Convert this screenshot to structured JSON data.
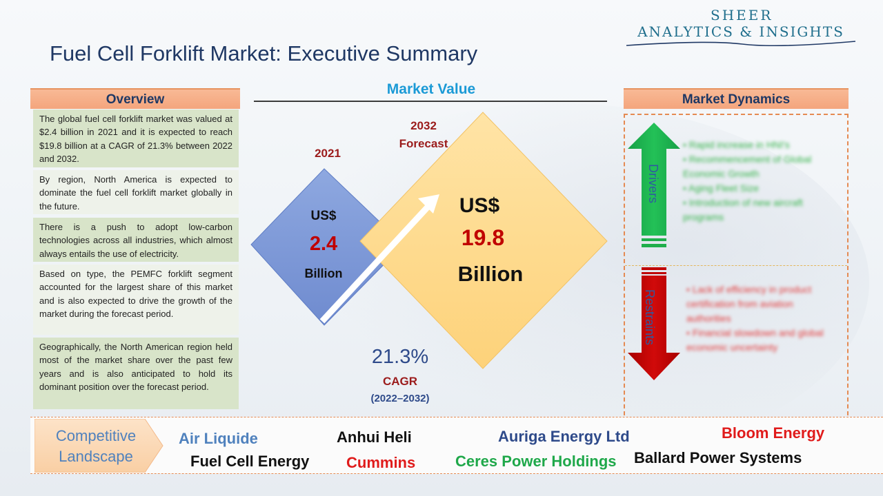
{
  "logo": {
    "line1": "SHEER",
    "line2": "ANALYTICS & INSIGHTS"
  },
  "title": "Fuel Cell Forklift Market: Executive Summary",
  "overview": {
    "heading": "Overview",
    "paragraphs": [
      "The global fuel cell forklift market was valued at $2.4 billion in 2021 and it is expected to reach $19.8 billion at a CAGR of 21.3% between 2022 and 2032.",
      "By region, North America is expected to dominate the fuel cell forklift market globally in the future.",
      "There is a push to adopt low-carbon technologies across all industries, which almost always entails the use of electricity.",
      "Based on type, the PEMFC forklift segment accounted for the largest share of this market and is also expected to drive the growth of the market during the forecast period.",
      "Geographically, the North American region held most of the market share over the past few years and is also anticipated to hold its dominant position over the forecast period."
    ]
  },
  "market_value": {
    "heading": "Market Value",
    "year_2021": "2021",
    "year_2032": "2032 Forecast",
    "currency_small": "US$",
    "value_2021": "2.4",
    "unit_small": "Billion",
    "currency_large": "US$",
    "value_2032": "19.8",
    "unit_large": "Billion",
    "cagr_value": "21.3%",
    "cagr_label": "CAGR",
    "cagr_period": "(2022–2032)"
  },
  "market_dynamics": {
    "heading": "Market Dynamics",
    "drivers_label": "Drivers",
    "restraints_label": "Restraints",
    "drivers": [
      "Rapid increase in HNI's",
      "Recommencement of Global Economic Growth",
      "Aging Fleet Size",
      "Introduction of new aircraft programs"
    ],
    "restraints": [
      "Lack of efficiency in product certification from aviation authorities",
      "Financial slowdown and global economic uncertainty"
    ]
  },
  "competitive_landscape": {
    "heading": "Competitive Landscape",
    "companies": [
      {
        "name": "Air Liquide",
        "color": "#4f81bd"
      },
      {
        "name": "Anhui Heli",
        "color": "#111111"
      },
      {
        "name": "Auriga Energy Ltd",
        "color": "#2e4a8a"
      },
      {
        "name": "Bloom Energy",
        "color": "#e01b1b"
      },
      {
        "name": "Fuel Cell Energy",
        "color": "#111111"
      },
      {
        "name": "Cummins",
        "color": "#e01b1b"
      },
      {
        "name": "Ceres Power Holdings",
        "color": "#1fa84a"
      },
      {
        "name": "Ballard Power Systems",
        "color": "#111111"
      }
    ]
  },
  "colors": {
    "drivers_arrow": "#1fae4b",
    "restraints_arrow": "#c00000",
    "diamond_small": "#7f9bd6",
    "diamond_large": "#ffd98a"
  }
}
